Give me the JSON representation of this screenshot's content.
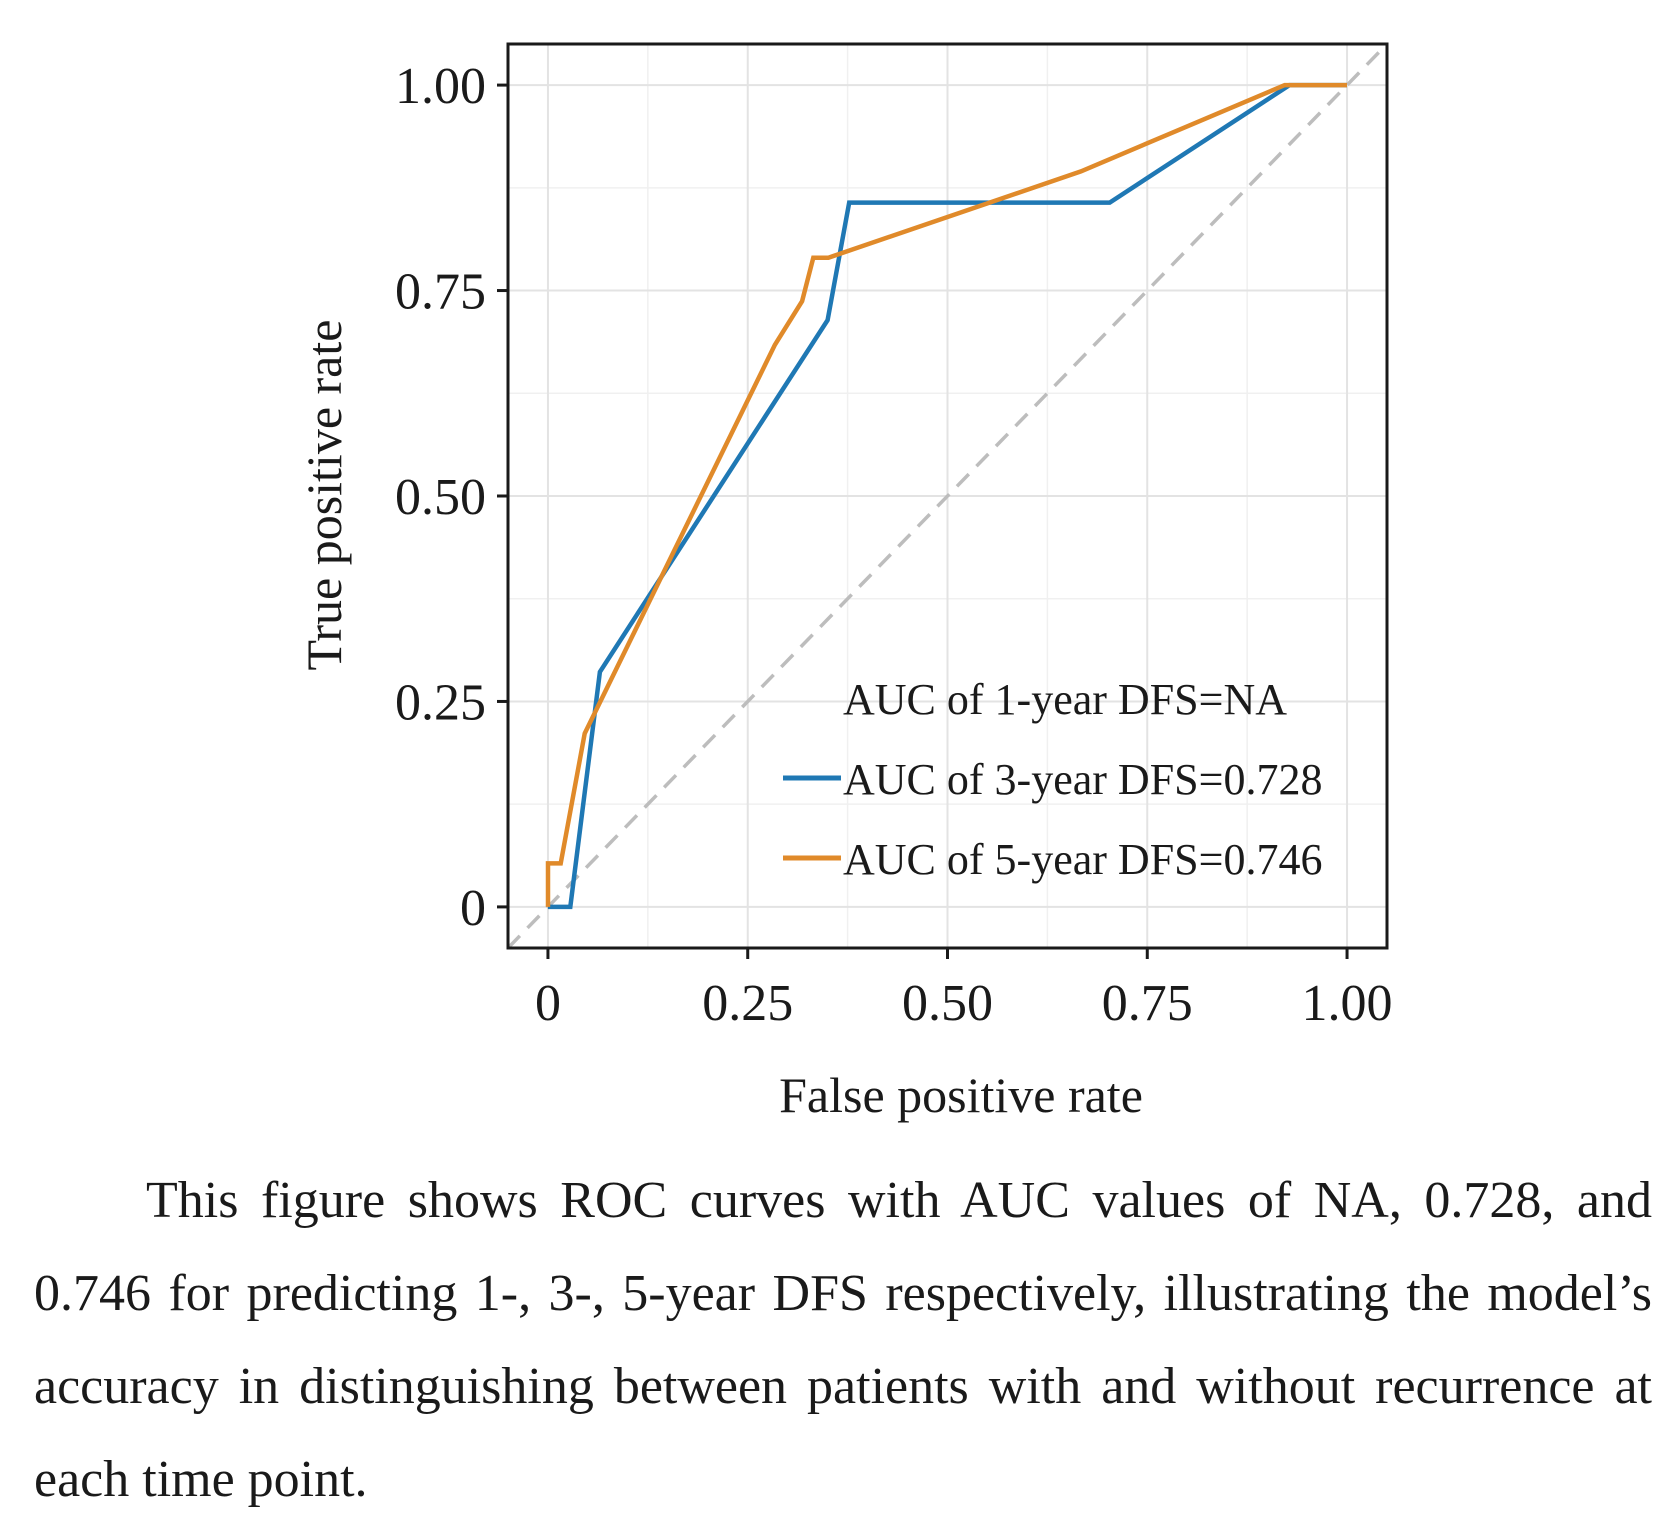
{
  "chart_data": {
    "type": "line",
    "title": "",
    "xlabel": "False positive rate",
    "ylabel": "True positive rate",
    "xlim": [
      -0.05,
      1.05
    ],
    "ylim": [
      -0.05,
      1.05
    ],
    "x_ticks": [
      0,
      0.25,
      0.5,
      0.75,
      1.0
    ],
    "y_ticks": [
      0,
      0.25,
      0.5,
      0.75,
      1.0
    ],
    "x_tick_labels": [
      "0",
      "0.25",
      "0.50",
      "0.75",
      "1.00"
    ],
    "y_tick_labels": [
      "0",
      "0.25",
      "0.50",
      "0.75",
      "1.00"
    ],
    "grid": true,
    "legend_position": "bottom-right",
    "reference_line": {
      "points": [
        [
          -0.05,
          -0.05
        ],
        [
          1.05,
          1.05
        ]
      ],
      "color": "#bdbdbd",
      "style": "dashed"
    },
    "legend": [
      {
        "label": "AUC of 1-year DFS=NA",
        "color": null
      },
      {
        "label": "AUC of 3-year DFS=0.728",
        "color": "#1f78b4"
      },
      {
        "label": "AUC of 5-year DFS=0.746",
        "color": "#e08a2a"
      }
    ],
    "series": [
      {
        "name": "AUC of 3-year DFS=0.728",
        "color": "#1f78b4",
        "points": [
          [
            0,
            0
          ],
          [
            0.028,
            0
          ],
          [
            0.065,
            0.286
          ],
          [
            0.35,
            0.714
          ],
          [
            0.377,
            0.857
          ],
          [
            0.703,
            0.857
          ],
          [
            0.928,
            1.0
          ],
          [
            1.0,
            1.0
          ]
        ]
      },
      {
        "name": "AUC of 5-year DFS=0.746",
        "color": "#e08a2a",
        "points": [
          [
            0,
            0
          ],
          [
            0,
            0.053
          ],
          [
            0.016,
            0.053
          ],
          [
            0.046,
            0.211
          ],
          [
            0.284,
            0.684
          ],
          [
            0.318,
            0.737
          ],
          [
            0.332,
            0.79
          ],
          [
            0.351,
            0.79
          ],
          [
            0.667,
            0.895
          ],
          [
            0.922,
            1.0
          ],
          [
            1.0,
            1.0
          ]
        ]
      }
    ]
  },
  "caption": "This figure shows ROC curves with AUC values of NA, 0.728, and 0.746 for predicting 1-, 3-, 5-year DFS respectively, illustrating the model’s accuracy in distinguishing between patients with and without recurrence at each time point."
}
